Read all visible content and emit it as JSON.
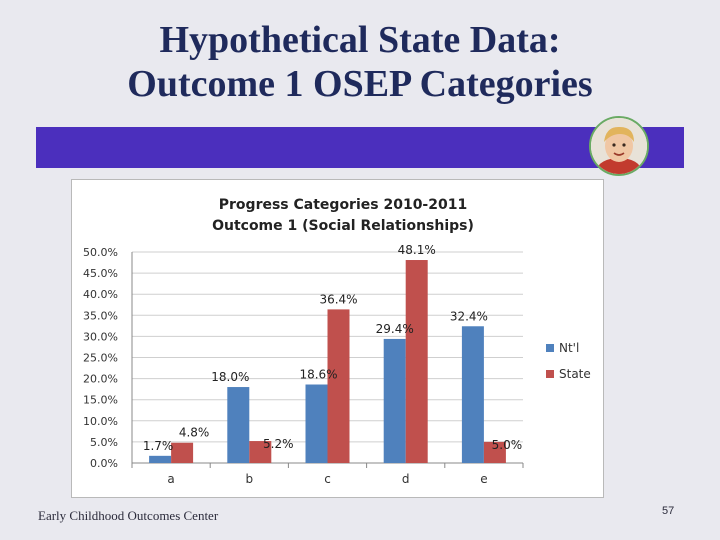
{
  "slide": {
    "title_line1": "Hypothetical State Data:",
    "title_line2": "Outcome 1 OSEP Categories",
    "footer": "Early Childhood Outcomes Center",
    "page_number": "57"
  },
  "colors": {
    "band": "#4b2fbd",
    "title": "#1f2a5c",
    "natl": "#4f81bd",
    "state": "#c0504d"
  },
  "chart_data": {
    "type": "bar",
    "title_line1": "Progress Categories 2010-2011",
    "title_line2": "Outcome 1 (Social Relationships)",
    "categories": [
      "a",
      "b",
      "c",
      "d",
      "e"
    ],
    "series": [
      {
        "name": "Nt'l",
        "values": [
          1.7,
          18.0,
          18.6,
          29.4,
          32.4
        ],
        "labels": [
          "1.7%",
          "18.0%",
          "18.6%",
          "29.4%",
          "32.4%"
        ]
      },
      {
        "name": "State",
        "values": [
          4.8,
          5.2,
          36.4,
          48.1,
          5.0
        ],
        "labels": [
          "4.8%",
          "5.2%",
          "36.4%",
          "48.1%",
          "5.0%"
        ]
      }
    ],
    "y_ticks": [
      "0.0%",
      "5.0%",
      "10.0%",
      "15.0%",
      "20.0%",
      "25.0%",
      "30.0%",
      "35.0%",
      "40.0%",
      "45.0%",
      "50.0%"
    ],
    "ylim": [
      0,
      50
    ],
    "grid": true,
    "legend_position": "right"
  }
}
